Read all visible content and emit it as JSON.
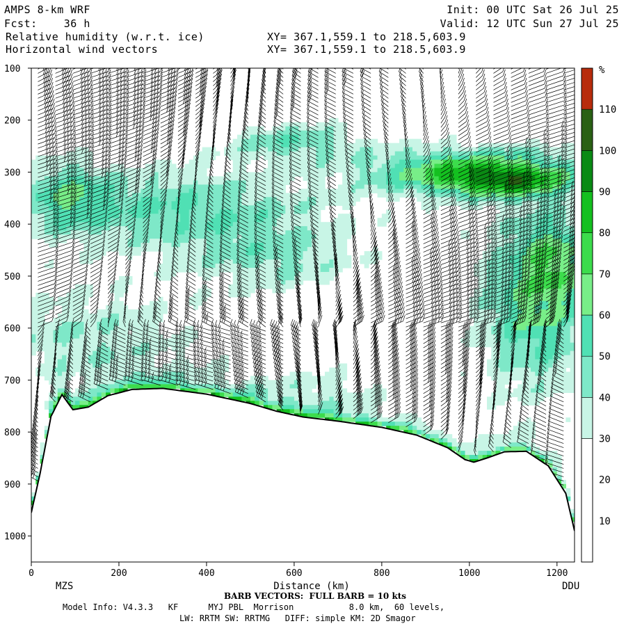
{
  "header": {
    "model": "AMPS 8-km WRF",
    "fcst": "Fcst:    36 h",
    "init": "Init: 00 UTC Sat 26 Jul 25",
    "valid": "Valid: 12 UTC Sun 27 Jul 25",
    "field1": "Relative humidity (w.r.t. ice)",
    "field2": "Horizontal wind vectors",
    "xy1": "XY= 367.1,559.1 to 218.5,603.9",
    "xy2": "XY= 367.1,559.1 to 218.5,603.9"
  },
  "footer": {
    "barb_note": "BARB VECTORS:  FULL BARB = 10 kts",
    "model_info": "Model Info: V4.3.3   KF      MYJ PBL  Morrison           8.0 km,  60 levels,",
    "model_info2": "LW: RRTM SW: RRTMG   DIFF: simple KM: 2D Smagor"
  },
  "chart_data": {
    "type": "heatmap",
    "title": "Relative humidity (w.r.t. ice)",
    "xlabel": "Distance (km)",
    "ylabel": "",
    "x_range": [
      0,
      1240
    ],
    "y_range_hpa": [
      100,
      1050
    ],
    "y_scale": "linear (inverted, pressure)",
    "x_ticks": [
      0,
      200,
      400,
      600,
      800,
      1000,
      1200
    ],
    "y_ticks": [
      100,
      200,
      300,
      400,
      500,
      600,
      700,
      800,
      900,
      1000
    ],
    "left_station": "MZS",
    "right_station": "DDU",
    "colorbar": {
      "unit": "%",
      "ticks": [
        10,
        20,
        30,
        40,
        50,
        60,
        70,
        80,
        90,
        100,
        110
      ],
      "bins": [
        {
          "min": 0,
          "max": 30,
          "color": "#ffffff"
        },
        {
          "min": 30,
          "max": 40,
          "color": "#c8f5e6"
        },
        {
          "min": 40,
          "max": 50,
          "color": "#7ee8c8"
        },
        {
          "min": 50,
          "max": 60,
          "color": "#50e0b4"
        },
        {
          "min": 60,
          "max": 70,
          "color": "#78ee88"
        },
        {
          "min": 70,
          "max": 80,
          "color": "#3cdc4c"
        },
        {
          "min": 80,
          "max": 90,
          "color": "#14c020"
        },
        {
          "min": 90,
          "max": 100,
          "color": "#0a8a14"
        },
        {
          "min": 100,
          "max": 110,
          "color": "#2a6014"
        },
        {
          "min": 110,
          "max": 120,
          "color": "#b82c0c"
        }
      ]
    },
    "terrain_hpa": [
      [
        0,
        955
      ],
      [
        20,
        880
      ],
      [
        45,
        770
      ],
      [
        70,
        728
      ],
      [
        95,
        757
      ],
      [
        130,
        752
      ],
      [
        175,
        730
      ],
      [
        230,
        718
      ],
      [
        300,
        716
      ],
      [
        400,
        727
      ],
      [
        500,
        745
      ],
      [
        560,
        760
      ],
      [
        620,
        771
      ],
      [
        700,
        779
      ],
      [
        800,
        791
      ],
      [
        880,
        806
      ],
      [
        950,
        830
      ],
      [
        990,
        853
      ],
      [
        1010,
        858
      ],
      [
        1040,
        850
      ],
      [
        1080,
        838
      ],
      [
        1130,
        837
      ],
      [
        1180,
        865
      ],
      [
        1220,
        918
      ],
      [
        1240,
        990
      ]
    ],
    "rh_regions": [
      {
        "label": "moist layer 300-450 hPa western half",
        "rh_min": 40,
        "rh_max": 60
      },
      {
        "label": "moist layer 280-350 hPa eastern half",
        "rh_min": 60,
        "rh_max": 100
      },
      {
        "label": "moist tongue 350-700 hPa near DDU",
        "rh_min": 40,
        "rh_max": 80
      },
      {
        "label": "boundary layer above terrain",
        "rh_min": 40,
        "rh_max": 110
      }
    ],
    "wind_barbs": {
      "column_spacing_km": 40,
      "level_spacing_hpa": 8,
      "speed_kts_range": [
        5,
        45
      ],
      "full_barb_kts": 10
    }
  }
}
